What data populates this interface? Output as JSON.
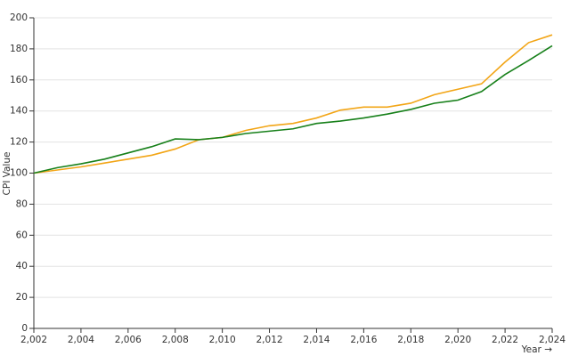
{
  "chart_data": {
    "type": "line",
    "x_label": "Year →",
    "y_label": "CPI Value",
    "x": [
      2002,
      2003,
      2004,
      2005,
      2006,
      2007,
      2008,
      2009,
      2010,
      2011,
      2012,
      2013,
      2014,
      2015,
      2016,
      2017,
      2018,
      2019,
      2020,
      2021,
      2022,
      2023,
      2024
    ],
    "series": [
      {
        "color": "#f2a516",
        "values": [
          100,
          102,
          104,
          106.5,
          109,
          111.5,
          115.5,
          121.5,
          123,
          127.5,
          130.5,
          132,
          135.5,
          140.5,
          142.5,
          142.5,
          145,
          150.5,
          154,
          157.5,
          171.5,
          184,
          189
        ]
      },
      {
        "color": "#17801a",
        "values": [
          100,
          103.5,
          106,
          109,
          113,
          117,
          122,
          121.5,
          123,
          125.5,
          127,
          128.5,
          132,
          133.5,
          135.5,
          138,
          141,
          145,
          147,
          152.5,
          163.5,
          172.5,
          182
        ]
      }
    ],
    "xlim": [
      2002,
      2024
    ],
    "xticks": [
      {
        "value": 2002,
        "label": "2,002"
      },
      {
        "value": 2004,
        "label": "2,004"
      },
      {
        "value": 2006,
        "label": "2,006"
      },
      {
        "value": 2008,
        "label": "2,008"
      },
      {
        "value": 2010,
        "label": "2,010"
      },
      {
        "value": 2012,
        "label": "2,012"
      },
      {
        "value": 2014,
        "label": "2,014"
      },
      {
        "value": 2016,
        "label": "2,016"
      },
      {
        "value": 2018,
        "label": "2,018"
      },
      {
        "value": 2020,
        "label": "2,020"
      },
      {
        "value": 2022,
        "label": "2,022"
      },
      {
        "value": 2024,
        "label": "2,024"
      }
    ],
    "ylim": [
      0,
      200
    ],
    "yticks": [
      0,
      20,
      40,
      60,
      80,
      100,
      120,
      140,
      160,
      180,
      200
    ],
    "grid": true
  }
}
